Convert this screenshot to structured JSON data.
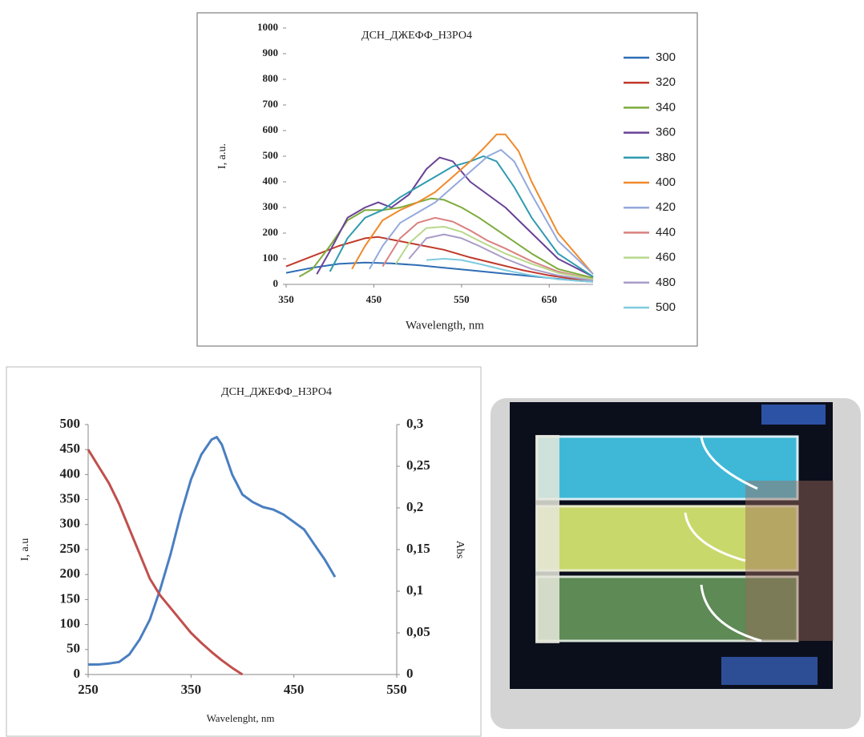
{
  "chart_data": [
    {
      "type": "line",
      "title": "ДСН_ДЖЕФФ_Н3РО4",
      "xlabel": "Wavelength, nm",
      "ylabel": "I, a.u.",
      "xlim": [
        350,
        700
      ],
      "xticks": [
        350,
        450,
        550,
        650
      ],
      "ylim": [
        0,
        1000
      ],
      "yticks": [
        0,
        100,
        200,
        300,
        400,
        500,
        600,
        700,
        800,
        900,
        1000
      ],
      "legend": "right",
      "series": [
        {
          "name": "300",
          "color": "#2e6db4",
          "x": [
            350,
            380,
            410,
            440,
            470,
            500,
            530,
            560,
            590,
            620,
            650,
            680,
            700
          ],
          "values": [
            45,
            65,
            80,
            85,
            82,
            75,
            65,
            55,
            45,
            35,
            25,
            15,
            10
          ]
        },
        {
          "name": "320",
          "color": "#c0392b",
          "x": [
            350,
            380,
            410,
            440,
            455,
            470,
            500,
            530,
            560,
            590,
            620,
            650,
            680,
            700
          ],
          "values": [
            70,
            110,
            150,
            180,
            185,
            175,
            155,
            135,
            105,
            80,
            55,
            35,
            20,
            15
          ]
        },
        {
          "name": "340",
          "color": "#7dab3c",
          "x": [
            365,
            380,
            400,
            420,
            440,
            460,
            480,
            500,
            515,
            530,
            550,
            570,
            600,
            630,
            660,
            700
          ],
          "values": [
            30,
            60,
            150,
            250,
            290,
            290,
            300,
            320,
            335,
            330,
            300,
            260,
            190,
            120,
            60,
            25
          ]
        },
        {
          "name": "360",
          "color": "#6a4296",
          "x": [
            385,
            400,
            420,
            440,
            455,
            470,
            490,
            510,
            525,
            540,
            560,
            580,
            600,
            630,
            660,
            700
          ],
          "values": [
            40,
            130,
            260,
            300,
            320,
            300,
            350,
            450,
            495,
            480,
            400,
            350,
            300,
            200,
            100,
            30
          ]
        },
        {
          "name": "380",
          "color": "#2f9bb0",
          "x": [
            400,
            420,
            440,
            460,
            480,
            500,
            520,
            540,
            560,
            575,
            590,
            610,
            630,
            660,
            700
          ],
          "values": [
            50,
            180,
            260,
            290,
            340,
            380,
            420,
            460,
            480,
            500,
            480,
            380,
            260,
            120,
            30
          ]
        },
        {
          "name": "400",
          "color": "#ef8a2c",
          "x": [
            425,
            440,
            460,
            480,
            500,
            520,
            540,
            560,
            575,
            590,
            600,
            615,
            630,
            660,
            700
          ],
          "values": [
            60,
            150,
            250,
            290,
            320,
            360,
            420,
            480,
            530,
            585,
            585,
            520,
            400,
            200,
            40
          ]
        },
        {
          "name": "420",
          "color": "#94a9dc",
          "x": [
            445,
            460,
            480,
            500,
            520,
            540,
            560,
            580,
            595,
            610,
            630,
            660,
            700
          ],
          "values": [
            60,
            150,
            240,
            280,
            320,
            380,
            440,
            500,
            525,
            480,
            350,
            170,
            40
          ]
        },
        {
          "name": "440",
          "color": "#d9817f",
          "x": [
            460,
            480,
            500,
            520,
            540,
            560,
            580,
            600,
            630,
            660,
            700
          ],
          "values": [
            70,
            180,
            240,
            260,
            245,
            210,
            170,
            140,
            90,
            50,
            20
          ]
        },
        {
          "name": "460",
          "color": "#b8d88b",
          "x": [
            475,
            490,
            510,
            530,
            550,
            570,
            600,
            630,
            660,
            700
          ],
          "values": [
            80,
            160,
            220,
            225,
            205,
            170,
            120,
            80,
            45,
            20
          ]
        },
        {
          "name": "480",
          "color": "#a99cc8",
          "x": [
            490,
            510,
            530,
            550,
            570,
            600,
            630,
            660,
            700
          ],
          "values": [
            100,
            180,
            195,
            180,
            150,
            100,
            60,
            35,
            15
          ]
        },
        {
          "name": "500",
          "color": "#7fcbe0",
          "x": [
            510,
            530,
            550,
            570,
            600,
            630,
            660,
            700
          ],
          "values": [
            95,
            100,
            95,
            80,
            55,
            35,
            20,
            10
          ]
        }
      ]
    },
    {
      "type": "line",
      "title": "ДСН_ДЖЕФФ_Н3РО4",
      "xlabel": "Wavelenght, nm",
      "ylabel": "I, a.u",
      "y2label": "Abs",
      "xlim": [
        250,
        550
      ],
      "xticks": [
        250,
        350,
        450,
        550
      ],
      "ylim": [
        0,
        500
      ],
      "yticks": [
        0,
        50,
        100,
        150,
        200,
        250,
        300,
        350,
        400,
        450,
        500
      ],
      "y2lim": [
        0,
        0.3
      ],
      "y2ticks": [
        0,
        {
          "value": 0.05,
          "label": "0,05"
        },
        {
          "value": 0.1,
          "label": "0,1"
        },
        {
          "value": 0.15,
          "label": "0,15"
        },
        {
          "value": 0.2,
          "label": "0,2"
        },
        {
          "value": 0.25,
          "label": "0,25"
        },
        {
          "value": 0.3,
          "label": "0,3"
        }
      ],
      "series": [
        {
          "color": "#4a7fc1",
          "x": [
            250,
            260,
            270,
            280,
            290,
            300,
            310,
            320,
            330,
            340,
            350,
            360,
            370,
            375,
            380,
            390,
            400,
            410,
            420,
            430,
            440,
            450,
            460,
            470,
            480,
            490
          ],
          "values": [
            20,
            20,
            22,
            25,
            40,
            70,
            110,
            170,
            240,
            320,
            390,
            440,
            470,
            475,
            460,
            400,
            360,
            345,
            335,
            330,
            320,
            305,
            290,
            260,
            230,
            195
          ]
        },
        {
          "color": "#c0504d",
          "axis": "y2",
          "x": [
            250,
            260,
            270,
            280,
            290,
            300,
            310,
            320,
            330,
            340,
            350,
            360,
            370,
            380,
            390,
            400
          ],
          "values": [
            0.27,
            0.25,
            0.23,
            0.205,
            0.175,
            0.145,
            0.115,
            0.095,
            0.08,
            0.065,
            0.05,
            0.038,
            0.027,
            0.017,
            0.008,
            0
          ]
        }
      ]
    }
  ]
}
